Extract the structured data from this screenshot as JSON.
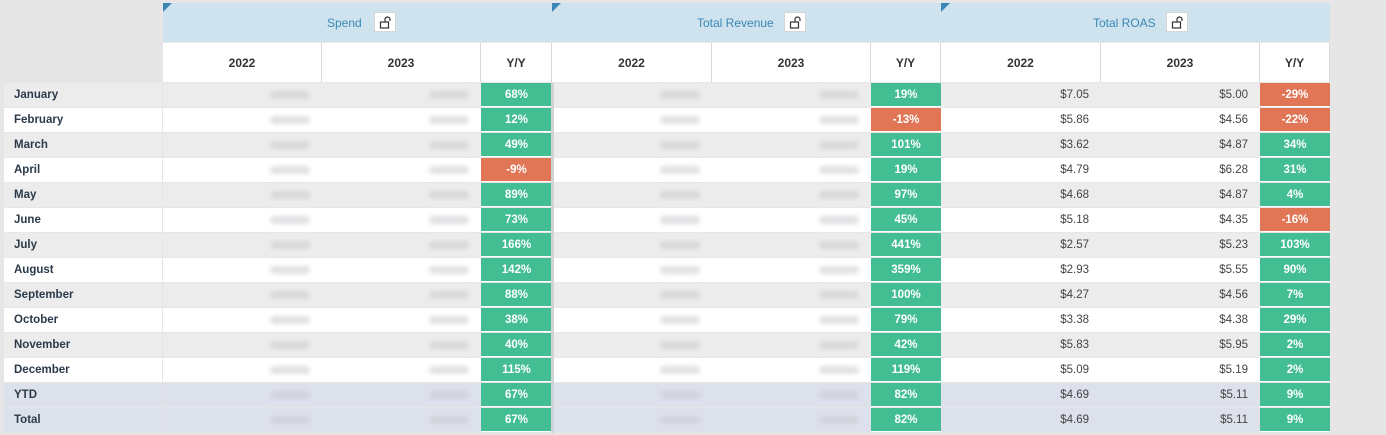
{
  "colors": {
    "positive": "#43bd92",
    "negative": "#e07656",
    "header": "#cfe3ee",
    "title": "#3a87b5"
  },
  "groups": [
    {
      "title": "Spend",
      "lock_icon": "unlock-icon"
    },
    {
      "title": "Total Revenue",
      "lock_icon": "unlock-icon"
    },
    {
      "title": "Total ROAS",
      "lock_icon": "unlock-icon"
    }
  ],
  "subheaders": [
    "2022",
    "2023",
    "Y/Y"
  ],
  "rows": [
    {
      "label": "January",
      "spend_yy": "68%",
      "rev_yy": "19%",
      "roas_2022": "$7.05",
      "roas_2023": "$5.00",
      "roas_yy": "-29%"
    },
    {
      "label": "February",
      "spend_yy": "12%",
      "rev_yy": "-13%",
      "roas_2022": "$5.86",
      "roas_2023": "$4.56",
      "roas_yy": "-22%"
    },
    {
      "label": "March",
      "spend_yy": "49%",
      "rev_yy": "101%",
      "roas_2022": "$3.62",
      "roas_2023": "$4.87",
      "roas_yy": "34%"
    },
    {
      "label": "April",
      "spend_yy": "-9%",
      "rev_yy": "19%",
      "roas_2022": "$4.79",
      "roas_2023": "$6.28",
      "roas_yy": "31%"
    },
    {
      "label": "May",
      "spend_yy": "89%",
      "rev_yy": "97%",
      "roas_2022": "$4.68",
      "roas_2023": "$4.87",
      "roas_yy": "4%"
    },
    {
      "label": "June",
      "spend_yy": "73%",
      "rev_yy": "45%",
      "roas_2022": "$5.18",
      "roas_2023": "$4.35",
      "roas_yy": "-16%"
    },
    {
      "label": "July",
      "spend_yy": "166%",
      "rev_yy": "441%",
      "roas_2022": "$2.57",
      "roas_2023": "$5.23",
      "roas_yy": "103%"
    },
    {
      "label": "August",
      "spend_yy": "142%",
      "rev_yy": "359%",
      "roas_2022": "$2.93",
      "roas_2023": "$5.55",
      "roas_yy": "90%"
    },
    {
      "label": "September",
      "spend_yy": "88%",
      "rev_yy": "100%",
      "roas_2022": "$4.27",
      "roas_2023": "$4.56",
      "roas_yy": "7%"
    },
    {
      "label": "October",
      "spend_yy": "38%",
      "rev_yy": "79%",
      "roas_2022": "$3.38",
      "roas_2023": "$4.38",
      "roas_yy": "29%"
    },
    {
      "label": "November",
      "spend_yy": "40%",
      "rev_yy": "42%",
      "roas_2022": "$5.83",
      "roas_2023": "$5.95",
      "roas_yy": "2%"
    },
    {
      "label": "December",
      "spend_yy": "115%",
      "rev_yy": "119%",
      "roas_2022": "$5.09",
      "roas_2023": "$5.19",
      "roas_yy": "2%"
    },
    {
      "label": "YTD",
      "spend_yy": "67%",
      "rev_yy": "82%",
      "roas_2022": "$4.69",
      "roas_2023": "$5.11",
      "roas_yy": "9%"
    },
    {
      "label": "Total",
      "spend_yy": "67%",
      "rev_yy": "82%",
      "roas_2022": "$4.69",
      "roas_2023": "$5.11",
      "roas_yy": "9%"
    }
  ]
}
